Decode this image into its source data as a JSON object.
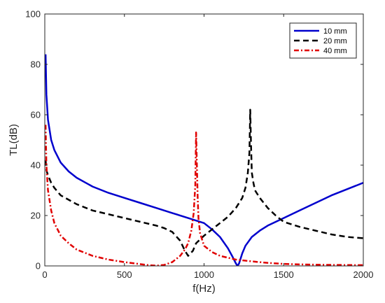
{
  "chart_data": {
    "type": "line",
    "title": "",
    "xlabel": "f(Hz)",
    "ylabel": "TL(dB)",
    "xlim": [
      0,
      2000
    ],
    "ylim": [
      0,
      100
    ],
    "xticks": [
      "0",
      "500",
      "1000",
      "1500",
      "2000"
    ],
    "yticks": [
      "0",
      "20",
      "40",
      "60",
      "80",
      "100"
    ],
    "grid": false,
    "legend": "top-right",
    "series": [
      {
        "name": "10 mm",
        "color": "#0000CD",
        "style": "solid",
        "x": [
          5,
          10,
          20,
          40,
          60,
          100,
          150,
          200,
          300,
          400,
          500,
          600,
          700,
          800,
          900,
          1000,
          1050,
          1100,
          1150,
          1180,
          1200,
          1210,
          1220,
          1240,
          1260,
          1300,
          1350,
          1400,
          1450,
          1500,
          1600,
          1700,
          1800,
          1900,
          2000
        ],
        "y": [
          84,
          68,
          58,
          50,
          46,
          41,
          37.5,
          35,
          31.5,
          29,
          27,
          25,
          23,
          21,
          19,
          17,
          14.5,
          11.5,
          7,
          3.5,
          1,
          0,
          1,
          5,
          8,
          11.5,
          14,
          16,
          17.5,
          19,
          22,
          25,
          28,
          30.5,
          33
        ]
      },
      {
        "name": "20 mm",
        "color": "#000000",
        "style": "dashed",
        "x": [
          5,
          10,
          20,
          40,
          60,
          100,
          200,
          300,
          400,
          500,
          600,
          700,
          750,
          800,
          850,
          880,
          900,
          930,
          950,
          1000,
          1050,
          1100,
          1150,
          1200,
          1240,
          1260,
          1275,
          1285,
          1290,
          1295,
          1300,
          1310,
          1320,
          1350,
          1400,
          1450,
          1500,
          1600,
          1700,
          1800,
          1900,
          2000
        ],
        "y": [
          42,
          38,
          36,
          33,
          31,
          28,
          24.5,
          22,
          20.5,
          19,
          17.5,
          16,
          15,
          13.5,
          10,
          6,
          4,
          6,
          9,
          12,
          14.5,
          17,
          19.5,
          23,
          27,
          31,
          37,
          45,
          62,
          48,
          37,
          33,
          30,
          27,
          23,
          20,
          17.5,
          15.5,
          14,
          12.5,
          11.5,
          11
        ]
      },
      {
        "name": "40 mm",
        "color": "#E00000",
        "style": "dashdot",
        "x": [
          5,
          10,
          20,
          40,
          60,
          100,
          150,
          200,
          300,
          400,
          500,
          600,
          650,
          700,
          750,
          800,
          850,
          880,
          900,
          920,
          935,
          945,
          950,
          955,
          960,
          965,
          975,
          1000,
          1050,
          1100,
          1200,
          1300,
          1400,
          1500,
          1600,
          1800,
          2000
        ],
        "y": [
          56,
          40,
          30,
          22,
          17,
          12,
          9,
          6.5,
          4,
          2.5,
          1.5,
          0.7,
          0.3,
          0.1,
          0.4,
          1.5,
          4,
          6.5,
          9,
          14,
          21,
          32,
          53,
          40,
          27,
          19,
          13,
          8,
          5.5,
          4,
          2.5,
          1.8,
          1.2,
          0.8,
          0.6,
          0.4,
          0.3
        ]
      }
    ]
  }
}
